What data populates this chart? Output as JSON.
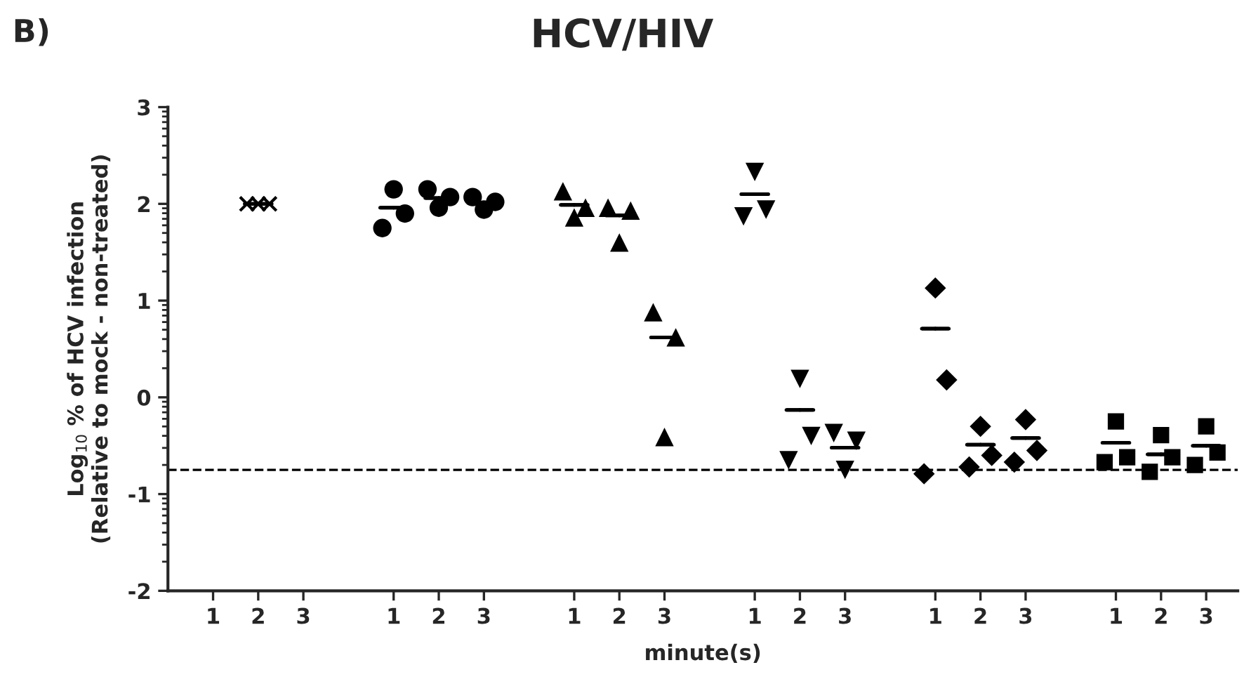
{
  "chart_data": {
    "type": "scatter",
    "title": "HCV/HIV",
    "xlabel": "minute(s)",
    "ylabel": "Log$_{10}$ % of HCV infection\n(Relative to mock - non-treated)",
    "annotations": [
      "B)"
    ],
    "categories": [
      "1",
      "2",
      "3",
      null,
      "1",
      "2",
      "3",
      null,
      "1",
      "2",
      "3",
      null,
      "1",
      "2",
      "3",
      null,
      "1",
      "2",
      "3",
      null,
      "1",
      "2",
      "3"
    ],
    "ylim": [
      -2,
      3
    ],
    "yticks": [
      -2,
      -1,
      0,
      1,
      2,
      3
    ],
    "grid": false,
    "legend": false,
    "ref_lines": [
      {
        "axis": "y",
        "value": -0.75,
        "color": "#000000",
        "line_style": "dashed"
      }
    ],
    "series": [
      {
        "color": "#000000",
        "marker": "cross",
        "values": [
          null,
          2.0,
          null,
          null,
          null,
          null,
          null,
          null,
          null,
          null,
          null,
          null,
          null,
          null,
          null,
          null,
          null,
          null,
          null,
          null,
          null,
          null,
          null
        ]
      },
      {
        "color": "#000000",
        "marker": "cross",
        "values": [
          null,
          2.0,
          null,
          null,
          null,
          null,
          null,
          null,
          null,
          null,
          null,
          null,
          null,
          null,
          null,
          null,
          null,
          null,
          null,
          null,
          null,
          null,
          null
        ]
      },
      {
        "color": "#000000",
        "marker": "cross",
        "values": [
          null,
          2.0,
          null,
          null,
          null,
          null,
          null,
          null,
          null,
          null,
          null,
          null,
          null,
          null,
          null,
          null,
          null,
          null,
          null,
          null,
          null,
          null,
          null
        ]
      },
      {
        "color": "#000000",
        "marker": "circle",
        "values": [
          null,
          null,
          null,
          null,
          1.75,
          2.15,
          2.07,
          null,
          null,
          null,
          null,
          null,
          null,
          null,
          null,
          null,
          null,
          null,
          null,
          null,
          null,
          null,
          null
        ]
      },
      {
        "color": "#000000",
        "marker": "circle",
        "values": [
          null,
          null,
          null,
          null,
          2.15,
          1.96,
          1.94,
          null,
          null,
          null,
          null,
          null,
          null,
          null,
          null,
          null,
          null,
          null,
          null,
          null,
          null,
          null,
          null
        ]
      },
      {
        "color": "#000000",
        "marker": "circle",
        "values": [
          null,
          null,
          null,
          null,
          1.9,
          2.07,
          2.02,
          null,
          null,
          null,
          null,
          null,
          null,
          null,
          null,
          null,
          null,
          null,
          null,
          null,
          null,
          null,
          null
        ]
      },
      {
        "color": "#000000",
        "marker": "triangle",
        "values": [
          null,
          null,
          null,
          null,
          null,
          null,
          null,
          null,
          2.13,
          1.96,
          0.88,
          null,
          null,
          null,
          null,
          null,
          null,
          null,
          null,
          null,
          null,
          null,
          null
        ]
      },
      {
        "color": "#000000",
        "marker": "triangle",
        "values": [
          null,
          null,
          null,
          null,
          null,
          null,
          null,
          null,
          1.86,
          1.6,
          -0.41,
          null,
          null,
          null,
          null,
          null,
          null,
          null,
          null,
          null,
          null,
          null,
          null
        ]
      },
      {
        "color": "#000000",
        "marker": "triangle",
        "values": [
          null,
          null,
          null,
          null,
          null,
          null,
          null,
          null,
          1.96,
          1.93,
          0.62,
          null,
          null,
          null,
          null,
          null,
          null,
          null,
          null,
          null,
          null,
          null,
          null
        ]
      },
      {
        "color": "#000000",
        "marker": "triangle_down",
        "values": [
          null,
          null,
          null,
          null,
          null,
          null,
          null,
          null,
          null,
          null,
          null,
          null,
          1.87,
          -0.65,
          -0.37,
          null,
          null,
          null,
          null,
          null,
          null,
          null,
          null
        ]
      },
      {
        "color": "#000000",
        "marker": "triangle_down",
        "values": [
          null,
          null,
          null,
          null,
          null,
          null,
          null,
          null,
          null,
          null,
          null,
          null,
          2.33,
          0.19,
          -0.75,
          null,
          null,
          null,
          null,
          null,
          null,
          null,
          null
        ]
      },
      {
        "color": "#000000",
        "marker": "triangle_down",
        "values": [
          null,
          null,
          null,
          null,
          null,
          null,
          null,
          null,
          null,
          null,
          null,
          null,
          1.94,
          -0.4,
          -0.45,
          null,
          null,
          null,
          null,
          null,
          null,
          null,
          null
        ]
      },
      {
        "color": "#000000",
        "marker": "diamond",
        "values": [
          null,
          null,
          null,
          null,
          null,
          null,
          null,
          null,
          null,
          null,
          null,
          null,
          null,
          null,
          null,
          null,
          -0.79,
          -0.72,
          -0.67,
          null,
          null,
          null,
          null
        ]
      },
      {
        "color": "#000000",
        "marker": "diamond",
        "values": [
          null,
          null,
          null,
          null,
          null,
          null,
          null,
          null,
          null,
          null,
          null,
          null,
          null,
          null,
          null,
          null,
          1.13,
          -0.3,
          -0.23,
          null,
          null,
          null,
          null
        ]
      },
      {
        "color": "#000000",
        "marker": "diamond",
        "values": [
          null,
          null,
          null,
          null,
          null,
          null,
          null,
          null,
          null,
          null,
          null,
          null,
          null,
          null,
          null,
          null,
          0.18,
          -0.6,
          -0.55,
          null,
          null,
          null,
          null
        ]
      },
      {
        "color": "#000000",
        "marker": "square",
        "values": [
          null,
          null,
          null,
          null,
          null,
          null,
          null,
          null,
          null,
          null,
          null,
          null,
          null,
          null,
          null,
          null,
          null,
          null,
          null,
          null,
          -0.67,
          -0.77,
          -0.7
        ]
      },
      {
        "color": "#000000",
        "marker": "square",
        "values": [
          null,
          null,
          null,
          null,
          null,
          null,
          null,
          null,
          null,
          null,
          null,
          null,
          null,
          null,
          null,
          null,
          null,
          null,
          null,
          null,
          -0.25,
          -0.39,
          -0.3
        ]
      },
      {
        "color": "#000000",
        "marker": "square",
        "values": [
          null,
          null,
          null,
          null,
          null,
          null,
          null,
          null,
          null,
          null,
          null,
          null,
          null,
          null,
          null,
          null,
          null,
          null,
          null,
          null,
          -0.62,
          -0.62,
          -0.57
        ]
      },
      {
        "type": "box",
        "color": "#000000",
        "boxes": [
          null,
          {
            "low": 2.0,
            "q1": 2.0,
            "median": 2.0,
            "q3": 2.0,
            "high": 2.0
          },
          null,
          null,
          {
            "low": 1.96,
            "q1": 1.96,
            "median": 1.96,
            "q3": 1.96,
            "high": 1.96
          },
          {
            "low": 2.06,
            "q1": 2.06,
            "median": 2.06,
            "q3": 2.06,
            "high": 2.06
          },
          {
            "low": 2.01,
            "q1": 2.01,
            "median": 2.01,
            "q3": 2.01,
            "high": 2.01
          },
          null,
          {
            "low": 1.99,
            "q1": 1.99,
            "median": 1.99,
            "q3": 1.99,
            "high": 1.99
          },
          {
            "low": 1.88,
            "q1": 1.88,
            "median": 1.88,
            "q3": 1.88,
            "high": 1.88
          },
          {
            "low": 0.62,
            "q1": 0.62,
            "median": 0.62,
            "q3": 0.62,
            "high": 0.62
          },
          null,
          {
            "low": 2.1,
            "q1": 2.1,
            "median": 2.1,
            "q3": 2.1,
            "high": 2.1
          },
          {
            "low": -0.13,
            "q1": -0.13,
            "median": -0.13,
            "q3": -0.13,
            "high": -0.13
          },
          {
            "low": -0.52,
            "q1": -0.52,
            "median": -0.52,
            "q3": -0.52,
            "high": -0.52
          },
          null,
          {
            "low": 0.71,
            "q1": 0.71,
            "median": 0.71,
            "q3": 0.71,
            "high": 0.71
          },
          {
            "low": -0.49,
            "q1": -0.49,
            "median": -0.49,
            "q3": -0.49,
            "high": -0.49
          },
          {
            "low": -0.42,
            "q1": -0.42,
            "median": -0.42,
            "q3": -0.42,
            "high": -0.42
          },
          null,
          {
            "low": -0.47,
            "q1": -0.47,
            "median": -0.47,
            "q3": -0.47,
            "high": -0.47
          },
          {
            "low": -0.59,
            "q1": -0.59,
            "median": -0.59,
            "q3": -0.59,
            "high": -0.59
          },
          {
            "low": -0.5,
            "q1": -0.5,
            "median": -0.5,
            "q3": -0.5,
            "high": -0.5
          }
        ]
      }
    ]
  }
}
